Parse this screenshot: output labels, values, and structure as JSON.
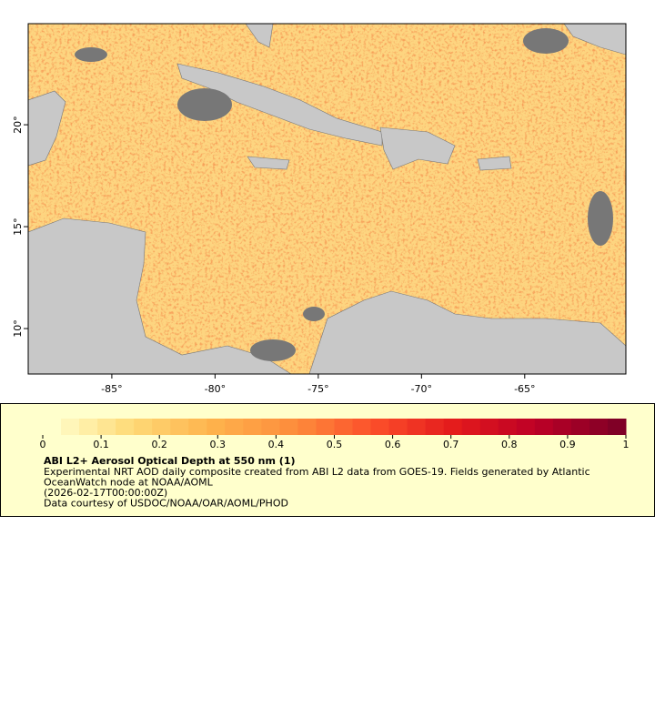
{
  "map": {
    "xlim": [
      -89.05,
      -60.1
    ],
    "ylim": [
      7.77,
      24.96
    ],
    "xticks": [
      {
        "value": -85,
        "label": "-85°"
      },
      {
        "value": -80,
        "label": "-80°"
      },
      {
        "value": -75,
        "label": "-75°"
      },
      {
        "value": -70,
        "label": "-70°"
      },
      {
        "value": -65,
        "label": "-65°"
      }
    ],
    "yticks": [
      {
        "value": 10,
        "label": "10°"
      },
      {
        "value": 15,
        "label": "15°"
      },
      {
        "value": 20,
        "label": "20°"
      }
    ]
  },
  "legend": {
    "colorbar": {
      "range": [
        0,
        1
      ],
      "ticks": [
        0,
        0.1,
        0.2,
        0.3,
        0.4,
        0.5,
        0.6,
        0.7,
        0.8,
        0.9,
        1
      ],
      "colors": [
        "#ffffcc",
        "#fed976",
        "#feb24c",
        "#fd8d3c",
        "#fc4e2a",
        "#e31a1c",
        "#bd0026",
        "#800026"
      ],
      "steps": 32
    },
    "title": "ABI L2+ Aerosol Optical Depth at 550 nm (1)",
    "lines": [
      "Experimental NRT AOD daily composite created from ABI L2 data from GOES-19. Fields generated by Atlantic",
      "OceanWatch node at NOAA/AOML",
      "(2026-02-17T00:00:00Z)",
      "Data courtesy of USDOC/NOAA/OAR/AOML/PHOD"
    ]
  }
}
